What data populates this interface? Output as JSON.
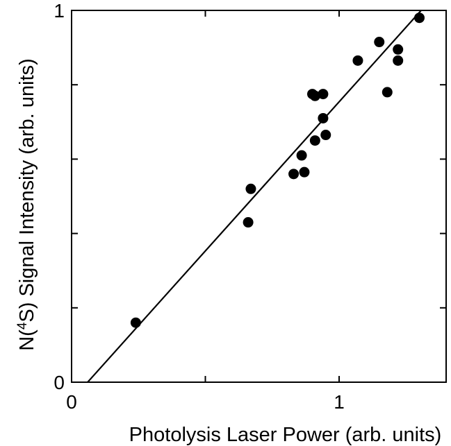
{
  "chart_data": {
    "type": "scatter",
    "title": "",
    "xlabel": "Photolysis Laser Power (arb. units)",
    "ylabel_parts": {
      "prefix": "N(",
      "superscript": "4",
      "suffix": "S) Signal Intensity (arb. units)"
    },
    "xlim": [
      0,
      1.4
    ],
    "ylim": [
      0,
      1.0
    ],
    "x_ticks": [
      {
        "value": 0,
        "label": "0"
      },
      {
        "value": 0.5,
        "label": ""
      },
      {
        "value": 1,
        "label": "1"
      }
    ],
    "y_ticks": [
      {
        "value": 0,
        "label": "0"
      },
      {
        "value": 0.2,
        "label": ""
      },
      {
        "value": 0.4,
        "label": ""
      },
      {
        "value": 0.6,
        "label": ""
      },
      {
        "value": 0.8,
        "label": ""
      },
      {
        "value": 1,
        "label": "1"
      }
    ],
    "series": [
      {
        "values": [
          {
            "x": 0.24,
            "y": 0.16
          },
          {
            "x": 0.66,
            "y": 0.43
          },
          {
            "x": 0.67,
            "y": 0.52
          },
          {
            "x": 0.83,
            "y": 0.56
          },
          {
            "x": 0.86,
            "y": 0.61
          },
          {
            "x": 0.87,
            "y": 0.565
          },
          {
            "x": 0.9,
            "y": 0.775
          },
          {
            "x": 0.91,
            "y": 0.77
          },
          {
            "x": 0.94,
            "y": 0.775
          },
          {
            "x": 0.94,
            "y": 0.71
          },
          {
            "x": 0.91,
            "y": 0.65
          },
          {
            "x": 0.95,
            "y": 0.665
          },
          {
            "x": 1.07,
            "y": 0.865
          },
          {
            "x": 1.15,
            "y": 0.915
          },
          {
            "x": 1.18,
            "y": 0.78
          },
          {
            "x": 1.22,
            "y": 0.895
          },
          {
            "x": 1.22,
            "y": 0.865
          },
          {
            "x": 1.3,
            "y": 0.98
          }
        ]
      }
    ],
    "fit_line": {
      "x": [
        0.06,
        1.4
      ],
      "y": [
        0.0,
        1.075
      ]
    },
    "grid": false,
    "legend": "none"
  }
}
